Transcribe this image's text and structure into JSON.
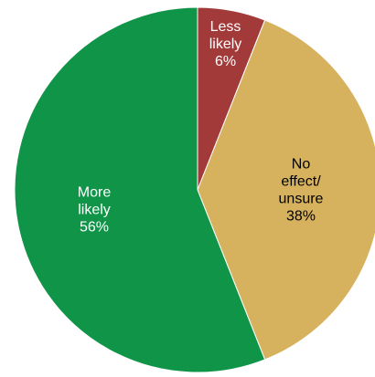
{
  "chart_data": {
    "type": "pie",
    "title": "",
    "start_angle_deg": 0,
    "direction": "clockwise",
    "slices": [
      {
        "label_lines": [
          "Less",
          "likely"
        ],
        "value": 6,
        "value_label": "6%",
        "color": "#a33a3a",
        "label_color": "#ffffff"
      },
      {
        "label_lines": [
          "No",
          "effect/",
          "unsure"
        ],
        "value": 38,
        "value_label": "38%",
        "color": "#d6b25e",
        "label_color": "#000000"
      },
      {
        "label_lines": [
          "More",
          "likely"
        ],
        "value": 56,
        "value_label": "56%",
        "color": "#0f9448",
        "label_color": "#ffffff"
      }
    ]
  }
}
